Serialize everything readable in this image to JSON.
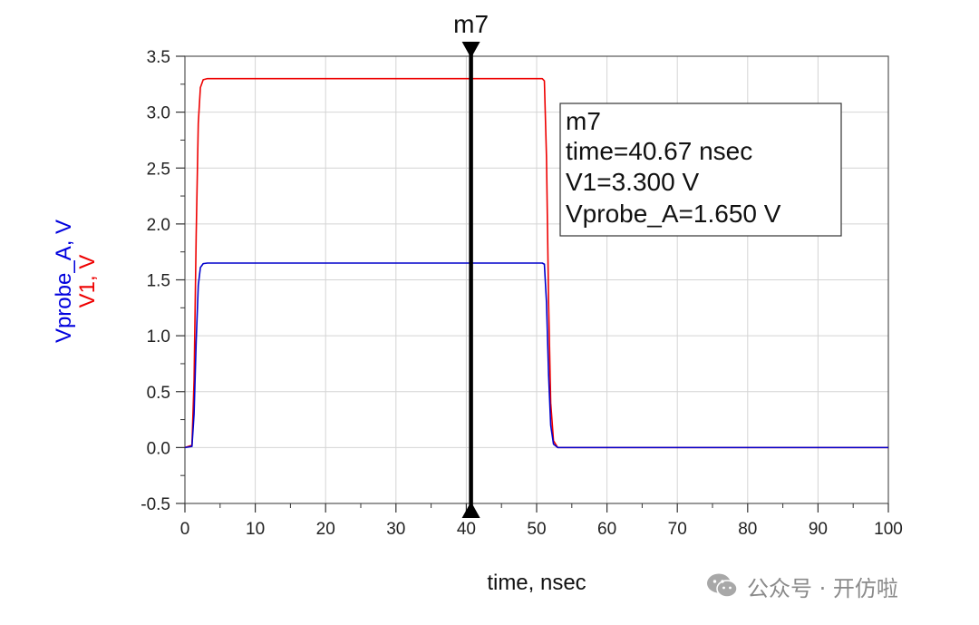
{
  "chart_data": {
    "type": "line",
    "xlabel": "time, nsec",
    "ylabels": [
      {
        "text": "Vprobe_A, V",
        "color": "#0000dd"
      },
      {
        "text": "V1, V",
        "color": "#ee0000"
      }
    ],
    "xlim": [
      0,
      100
    ],
    "ylim": [
      -0.5,
      3.5
    ],
    "xticks": [
      "0",
      "10",
      "20",
      "30",
      "40",
      "50",
      "60",
      "70",
      "80",
      "90",
      "100"
    ],
    "yticks": [
      "-0.5",
      "0.0",
      "0.5",
      "1.0",
      "1.5",
      "2.0",
      "2.5",
      "3.0",
      "3.5"
    ],
    "grid": true,
    "series": [
      {
        "name": "V1",
        "color": "#ee0000",
        "x": [
          0,
          1.0,
          1.3,
          1.6,
          1.9,
          2.2,
          2.6,
          3.2,
          50.8,
          51.1,
          51.4,
          51.7,
          52.0,
          52.4,
          53.0,
          100
        ],
        "y": [
          0,
          0.02,
          0.6,
          1.9,
          2.9,
          3.22,
          3.29,
          3.3,
          3.3,
          3.28,
          2.6,
          1.3,
          0.4,
          0.06,
          0.0,
          0.0
        ]
      },
      {
        "name": "Vprobe_A",
        "color": "#0000cc",
        "x": [
          0,
          1.0,
          1.3,
          1.6,
          1.9,
          2.2,
          2.6,
          3.2,
          50.8,
          51.1,
          51.4,
          51.7,
          52.0,
          52.4,
          53.0,
          100
        ],
        "y": [
          0,
          0.01,
          0.3,
          0.95,
          1.45,
          1.61,
          1.645,
          1.65,
          1.65,
          1.64,
          1.3,
          0.65,
          0.2,
          0.03,
          0.0,
          0.0
        ]
      }
    ],
    "marker": {
      "name": "m7",
      "x": 40.67,
      "box_lines": [
        "m7",
        "time=40.67 nsec",
        "V1=3.300  V",
        "Vprobe_A=1.650  V"
      ]
    }
  },
  "watermark": {
    "text": "公众号 · 开仿啦",
    "icon": "wechat-icon"
  }
}
